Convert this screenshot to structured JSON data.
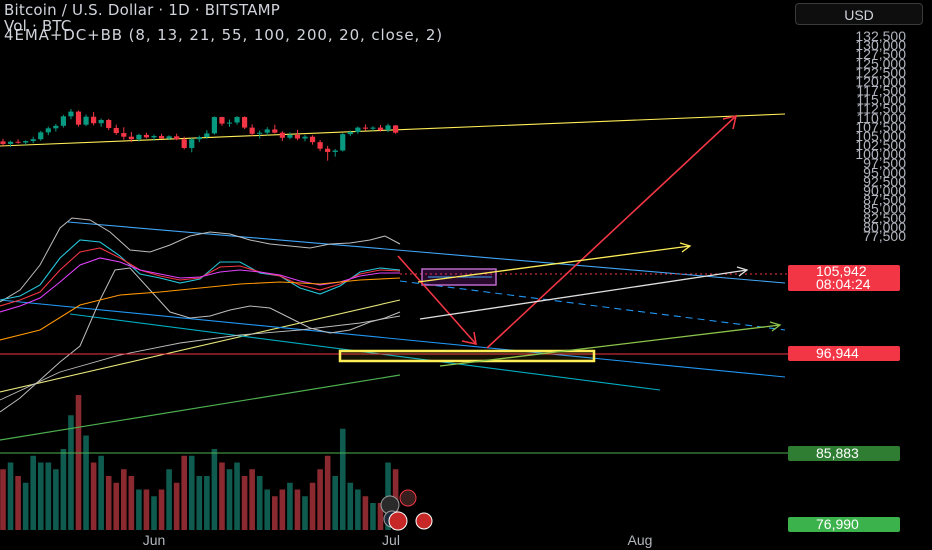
{
  "header": {
    "title": "Bitcoin / U.S. Dollar · 1D · BITSTAMP",
    "volume": "Vol · BTC",
    "indicator": "4EMA+DC+BB (8, 13, 21, 55, 100, 200, 20, close, 2)"
  },
  "currency_button": "USD",
  "price_labels": {
    "current": "105,942",
    "countdown": "08:04:24",
    "level_red": "96,944",
    "level_green_1": "85,883",
    "level_green_2": "76,990"
  },
  "colors": {
    "background": "#000000",
    "up_candle": "#089981",
    "down_candle": "#f23645",
    "axis_text": "#b2b5be",
    "channel": "#2196f3",
    "annotation_yellow": "#ffeb3b",
    "annotation_magenta": "#9c27b0"
  },
  "chart_data": {
    "type": "candlestick",
    "symbol": "Bitcoin / U.S. Dollar",
    "interval": "1D",
    "exchange": "BITSTAMP",
    "y_axis": {
      "labels": [
        "132,500",
        "130,000",
        "127,500",
        "125,000",
        "122,500",
        "120,000",
        "117,500",
        "115,000",
        "112,500",
        "110,000",
        "107,500",
        "105,000",
        "102,500",
        "100,000",
        "97,500",
        "95,000",
        "92,500",
        "90,000",
        "87,500",
        "85,000",
        "82,500",
        "80,000",
        "77,500"
      ],
      "range": [
        75600,
        134000
      ]
    },
    "x_axis": {
      "labels": [
        "Jun",
        "Jul",
        "Aug"
      ]
    },
    "candles_ohlc": [
      [
        103500,
        104200,
        102300,
        102800
      ],
      [
        102800,
        103700,
        102000,
        103400
      ],
      [
        103400,
        104100,
        102900,
        103200
      ],
      [
        103200,
        103800,
        102500,
        103600
      ],
      [
        103600,
        104800,
        103000,
        104100
      ],
      [
        104100,
        106400,
        103700,
        106000
      ],
      [
        106000,
        107600,
        105200,
        107100
      ],
      [
        107100,
        108300,
        106200,
        107800
      ],
      [
        107800,
        110800,
        107300,
        110400
      ],
      [
        110400,
        112400,
        109600,
        111700
      ],
      [
        111700,
        112000,
        107600,
        108100
      ],
      [
        108100,
        110900,
        107700,
        110300
      ],
      [
        110300,
        111600,
        107900,
        108500
      ],
      [
        108500,
        109800,
        107500,
        109400
      ],
      [
        109400,
        109700,
        106600,
        107200
      ],
      [
        107200,
        108100,
        105300,
        105800
      ],
      [
        105800,
        107400,
        104000,
        104800
      ],
      [
        104800,
        106100,
        103300,
        104100
      ],
      [
        104100,
        105600,
        103500,
        105300
      ],
      [
        105300,
        105900,
        104300,
        104600
      ],
      [
        104600,
        105400,
        103700,
        105000
      ],
      [
        105000,
        105600,
        104200,
        104300
      ],
      [
        104300,
        105200,
        103900,
        104900
      ],
      [
        104900,
        105600,
        103800,
        104100
      ],
      [
        104100,
        104800,
        101300,
        101700
      ],
      [
        101700,
        104400,
        100500,
        104100
      ],
      [
        104100,
        105100,
        103300,
        104700
      ],
      [
        104700,
        106600,
        104200,
        105700
      ],
      [
        105700,
        110400,
        105400,
        110200
      ],
      [
        110200,
        110300,
        107800,
        108400
      ],
      [
        108400,
        109500,
        107500,
        108700
      ],
      [
        108700,
        110500,
        108100,
        110200
      ],
      [
        110200,
        110400,
        106900,
        107300
      ],
      [
        107300,
        108200,
        105000,
        105600
      ],
      [
        105600,
        106500,
        104300,
        105900
      ],
      [
        105900,
        107400,
        105200,
        106800
      ],
      [
        106800,
        108100,
        105700,
        105900
      ],
      [
        105900,
        106300,
        103600,
        104500
      ],
      [
        104500,
        106000,
        104100,
        105300
      ],
      [
        105300,
        106700,
        103800,
        104300
      ],
      [
        104300,
        105300,
        103500,
        104800
      ],
      [
        104800,
        105200,
        102600,
        103300
      ],
      [
        103300,
        103900,
        100800,
        101500
      ],
      [
        101500,
        102300,
        98200,
        100600
      ],
      [
        100600,
        101400,
        99300,
        101000
      ],
      [
        101000,
        105800,
        100700,
        105500
      ],
      [
        105500,
        106500,
        105000,
        106100
      ],
      [
        106100,
        107600,
        105600,
        107300
      ],
      [
        107300,
        108200,
        106500,
        107000
      ],
      [
        107000,
        107700,
        106400,
        107300
      ],
      [
        107300,
        108000,
        106200,
        106600
      ],
      [
        106600,
        108400,
        106000,
        107900
      ],
      [
        107900,
        108000,
        105600,
        105900
      ]
    ],
    "volume_relative": [
      0.45,
      0.5,
      0.4,
      0.35,
      0.55,
      0.5,
      0.5,
      0.45,
      0.6,
      0.85,
      1.0,
      0.7,
      0.5,
      0.55,
      0.4,
      0.35,
      0.45,
      0.4,
      0.3,
      0.3,
      0.25,
      0.3,
      0.45,
      0.35,
      0.55,
      0.55,
      0.4,
      0.4,
      0.6,
      0.5,
      0.45,
      0.5,
      0.4,
      0.45,
      0.4,
      0.3,
      0.25,
      0.3,
      0.35,
      0.3,
      0.25,
      0.35,
      0.45,
      0.55,
      0.4,
      0.75,
      0.35,
      0.3,
      0.25,
      0.2,
      0.2,
      0.5,
      0.45
    ],
    "current_price": 105942,
    "horizontal_levels": [
      96944,
      85883,
      76990
    ],
    "grid": false
  }
}
